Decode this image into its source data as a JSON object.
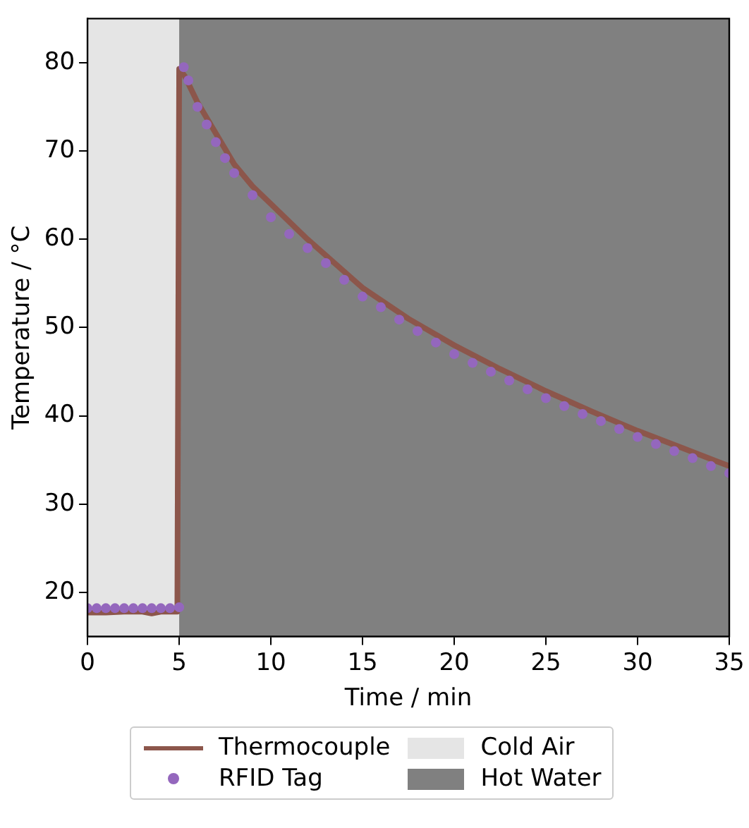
{
  "chart_data": {
    "type": "line",
    "xlabel": "Time / min",
    "ylabel": "Temperature / °C",
    "xlim": [
      0,
      35
    ],
    "xticks": [
      0,
      5,
      10,
      15,
      20,
      25,
      30,
      35
    ],
    "ylim": [
      15,
      85
    ],
    "yticks": [
      20,
      30,
      40,
      50,
      60,
      70,
      80
    ],
    "grid": false,
    "legend": "bottom",
    "bands": [
      {
        "axis": "x",
        "from": 0,
        "to": 5,
        "label": "Cold Air",
        "color": "#e5e5e5"
      },
      {
        "axis": "x",
        "from": 5,
        "to": 35,
        "label": "Hot Water",
        "color": "#808080"
      }
    ],
    "series": [
      {
        "name": "RFID Tag",
        "type": "scatter",
        "marker": "circle",
        "color": "#9467bd",
        "x": [
          0,
          0.5,
          1,
          1.5,
          2,
          2.5,
          3,
          3.5,
          4,
          4.5,
          5,
          5.25,
          5.5,
          6,
          6.5,
          7,
          7.5,
          8,
          9,
          10,
          11,
          12,
          13,
          14,
          15,
          16,
          17,
          18,
          19,
          20,
          21,
          22,
          23,
          24,
          25,
          26,
          27,
          28,
          29,
          30,
          31,
          32,
          33,
          34,
          35
        ],
        "values": [
          18.2,
          18.2,
          18.2,
          18.2,
          18.2,
          18.2,
          18.2,
          18.2,
          18.2,
          18.2,
          18.3,
          79.5,
          78,
          75,
          73,
          71,
          69.2,
          67.5,
          65,
          62.5,
          60.6,
          59,
          57.3,
          55.4,
          53.5,
          52.3,
          50.9,
          49.6,
          48.3,
          47,
          46,
          45,
          44,
          43,
          42,
          41.1,
          40.2,
          39.4,
          38.5,
          37.6,
          36.8,
          36,
          35.2,
          34.3,
          33.5
        ]
      },
      {
        "name": "Thermocouple",
        "line_style": "solid",
        "marker": "none",
        "color": "#8c564b",
        "x": [
          0,
          1,
          2,
          3,
          3.5,
          4,
          4.9,
          5,
          5.3,
          6,
          7,
          8,
          9,
          10,
          12,
          15,
          17.5,
          20,
          22.5,
          25,
          27.5,
          30,
          32.5,
          35
        ],
        "values": [
          17.7,
          17.7,
          17.8,
          17.8,
          17.6,
          17.8,
          17.8,
          79.3,
          78.5,
          75.5,
          72,
          68.5,
          66,
          64,
          60,
          54.5,
          51,
          48,
          45.3,
          42.8,
          40.5,
          38.3,
          36.3,
          34.3
        ]
      }
    ]
  }
}
